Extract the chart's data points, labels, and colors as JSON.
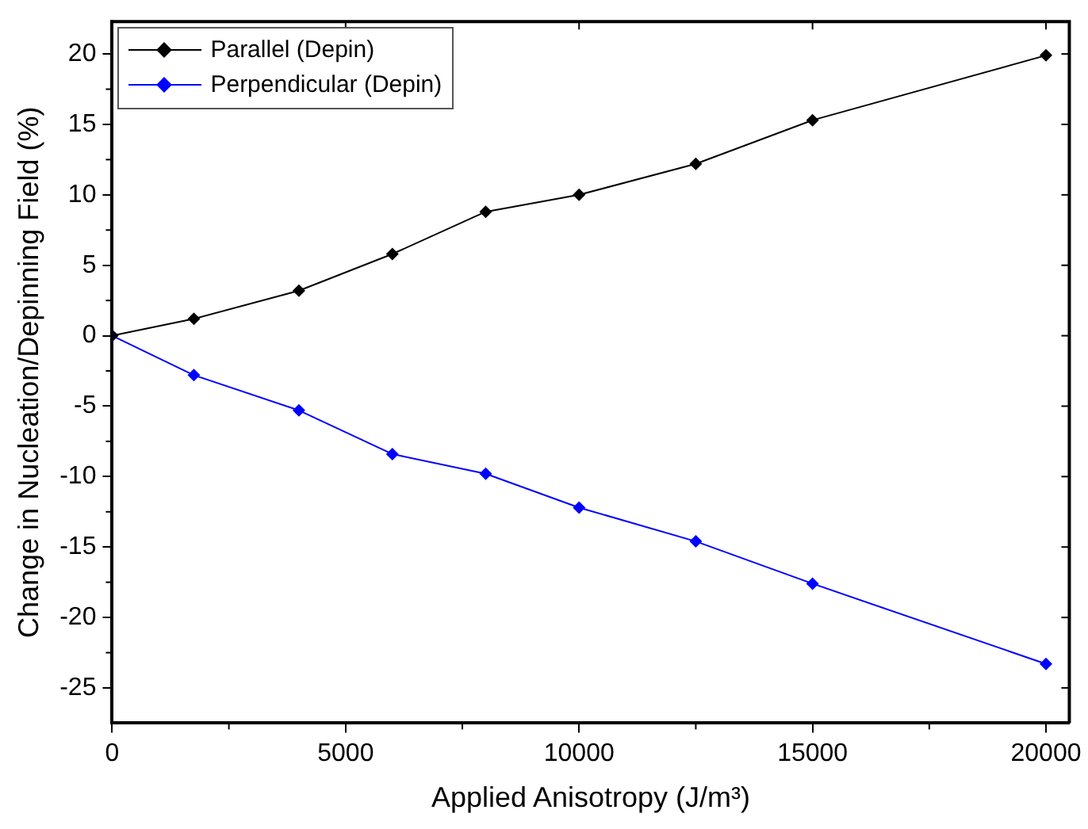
{
  "chart_data": {
    "type": "line",
    "xlabel": "Applied Anisotropy (J/m³)",
    "ylabel": "Change in Nucleation/Depinning Field (%)",
    "x": [
      0,
      1750,
      4000,
      6000,
      8000,
      10000,
      12500,
      15000,
      20000
    ],
    "series": [
      {
        "name": "Parallel (Depin)",
        "color": "#000000",
        "values": [
          0,
          1.2,
          3.2,
          5.8,
          8.8,
          10.0,
          12.2,
          15.3,
          19.9
        ]
      },
      {
        "name": "Perpendicular (Depin)",
        "color": "#0000ff",
        "values": [
          0,
          -2.8,
          -5.3,
          -8.4,
          -9.8,
          -12.2,
          -14.6,
          -17.6,
          -23.3
        ]
      }
    ],
    "xlim": [
      0,
      20500
    ],
    "xticks": [
      0,
      5000,
      10000,
      15000,
      20000
    ],
    "ylim": [
      -27.5,
      22.3
    ],
    "yticks": [
      -25,
      -20,
      -15,
      -10,
      -5,
      0,
      5,
      10,
      15,
      20
    ],
    "grid": false,
    "legend": "top left",
    "marker": "diamond",
    "line_style": "solid"
  }
}
